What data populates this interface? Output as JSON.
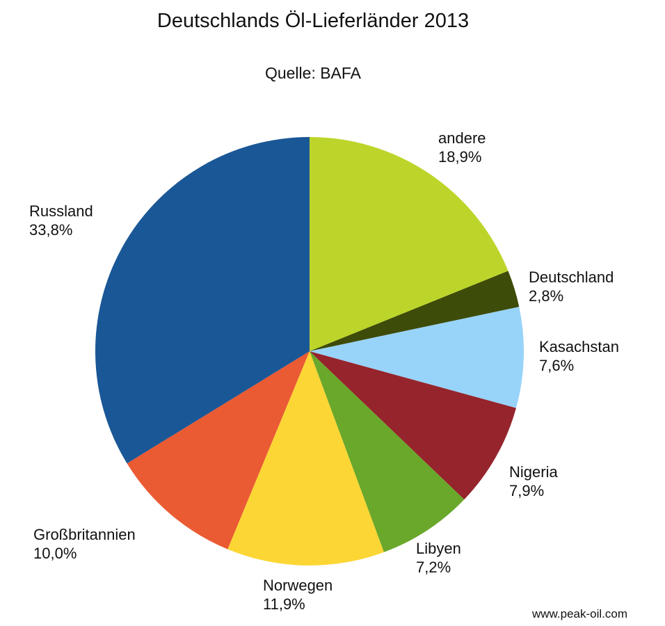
{
  "chart_data": {
    "type": "pie",
    "title": "Deutschlands Öl-Lieferländer 2013",
    "subtitle": "Quelle: BAFA",
    "start_angle": "12 o'clock",
    "direction": "clockwise",
    "slices": [
      {
        "label": "andere",
        "value": 18.9,
        "value_label": "18,9%",
        "color": "#bdd52a"
      },
      {
        "label": "Deutschland",
        "value": 2.8,
        "value_label": "2,8%",
        "color": "#3d4c08"
      },
      {
        "label": "Kasachstan",
        "value": 7.6,
        "value_label": "7,6%",
        "color": "#98d3fa"
      },
      {
        "label": "Nigeria",
        "value": 7.9,
        "value_label": "7,9%",
        "color": "#95242c"
      },
      {
        "label": "Libyen",
        "value": 7.2,
        "value_label": "7,2%",
        "color": "#6aa82b"
      },
      {
        "label": "Norwegen",
        "value": 11.9,
        "value_label": "11,9%",
        "color": "#fcd634"
      },
      {
        "label": "Großbritannien",
        "value": 10.0,
        "value_label": "10,0%",
        "color": "#ea5a33"
      },
      {
        "label": "Russland",
        "value": 33.8,
        "value_label": "33,8%",
        "color": "#1a5796"
      }
    ]
  },
  "watermark": "www.peak-oil.com"
}
